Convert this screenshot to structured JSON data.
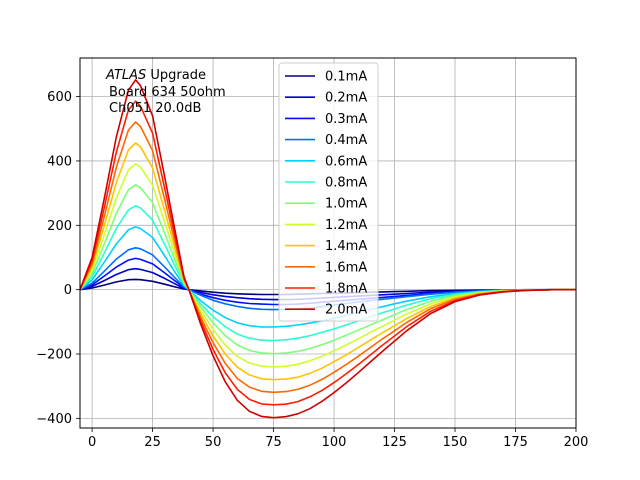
{
  "chart_data": {
    "type": "line",
    "title": "",
    "xlabel": "",
    "ylabel": "",
    "xlim": [
      -5,
      200
    ],
    "ylim": [
      -430,
      720
    ],
    "grid": true,
    "legend_position": "top-center",
    "x_ticks": [
      0,
      25,
      50,
      75,
      100,
      125,
      150,
      175,
      200
    ],
    "y_ticks": [
      -400,
      -200,
      0,
      200,
      400,
      600
    ],
    "x_tick_labels": [
      "0",
      "25",
      "50",
      "75",
      "100",
      "125",
      "150",
      "175",
      "200"
    ],
    "y_tick_labels": [
      "−400",
      "−200",
      "0",
      "200",
      "400",
      "600"
    ],
    "annotation": {
      "line1_italic": "ATLAS",
      "line1_rest": " Upgrade",
      "line2": "Board 634 50ohm",
      "line3": "Ch051 20.0dB"
    },
    "x": [
      -5,
      0,
      5,
      10,
      15,
      18,
      20,
      25,
      30,
      35,
      38,
      40,
      45,
      50,
      55,
      60,
      65,
      70,
      75,
      80,
      85,
      90,
      95,
      100,
      105,
      110,
      115,
      120,
      125,
      130,
      140,
      150,
      160,
      170,
      180,
      190,
      200
    ],
    "series": [
      {
        "name": "0.1mA",
        "color": "#00007f",
        "values": [
          0,
          5,
          14,
          24,
          31,
          32,
          31,
          26,
          17,
          7,
          2,
          0,
          -4,
          -8,
          -11,
          -13,
          -14,
          -15,
          -15,
          -15,
          -14,
          -13,
          -12,
          -11,
          -10,
          -9,
          -8,
          -7,
          -6,
          -5,
          -3,
          -2,
          -1,
          -1,
          0,
          0,
          0
        ]
      },
      {
        "name": "0.2mA",
        "color": "#0000d0",
        "values": [
          0,
          10,
          28,
          47,
          62,
          65,
          63,
          53,
          35,
          15,
          4,
          0,
          -9,
          -16,
          -21,
          -25,
          -28,
          -30,
          -31,
          -31,
          -30,
          -28,
          -26,
          -24,
          -22,
          -20,
          -18,
          -16,
          -14,
          -12,
          -8,
          -5,
          -3,
          -2,
          -1,
          0,
          0
        ]
      },
      {
        "name": "0.3mA",
        "color": "#0010ff",
        "values": [
          0,
          15,
          42,
          70,
          92,
          97,
          94,
          80,
          52,
          23,
          6,
          0,
          -14,
          -25,
          -33,
          -39,
          -43,
          -45,
          -46,
          -46,
          -45,
          -42,
          -39,
          -36,
          -33,
          -30,
          -27,
          -24,
          -21,
          -18,
          -12,
          -7,
          -4,
          -2,
          -1,
          0,
          0
        ]
      },
      {
        "name": "0.4mA",
        "color": "#0070ff",
        "values": [
          0,
          20,
          57,
          95,
          124,
          130,
          127,
          108,
          70,
          31,
          8,
          0,
          -18,
          -33,
          -44,
          -52,
          -58,
          -61,
          -62,
          -62,
          -60,
          -57,
          -53,
          -48,
          -43,
          -38,
          -34,
          -30,
          -26,
          -22,
          -14,
          -8,
          -4,
          -2,
          -1,
          0,
          0
        ]
      },
      {
        "name": "0.6mA",
        "color": "#00d0ff",
        "values": [
          0,
          30,
          85,
          142,
          186,
          195,
          190,
          162,
          105,
          46,
          12,
          0,
          -35,
          -64,
          -87,
          -103,
          -112,
          -116,
          -116,
          -114,
          -110,
          -104,
          -97,
          -89,
          -80,
          -71,
          -62,
          -53,
          -44,
          -36,
          -22,
          -12,
          -6,
          -3,
          -1,
          0,
          0
        ]
      },
      {
        "name": "0.8mA",
        "color": "#29ffce",
        "values": [
          0,
          40,
          113,
          190,
          248,
          261,
          254,
          216,
          140,
          62,
          16,
          0,
          -45,
          -84,
          -115,
          -138,
          -151,
          -157,
          -158,
          -156,
          -151,
          -143,
          -133,
          -122,
          -110,
          -97,
          -84,
          -72,
          -60,
          -48,
          -28,
          -15,
          -7,
          -3,
          -1,
          0,
          0
        ]
      },
      {
        "name": "1.0mA",
        "color": "#7dff7a",
        "values": [
          0,
          50,
          141,
          237,
          310,
          326,
          317,
          270,
          175,
          77,
          20,
          0,
          -55,
          -103,
          -143,
          -172,
          -189,
          -197,
          -199,
          -197,
          -192,
          -183,
          -171,
          -157,
          -142,
          -126,
          -110,
          -94,
          -78,
          -62,
          -36,
          -18,
          -8,
          -3,
          -1,
          0,
          0
        ]
      },
      {
        "name": "1.2mA",
        "color": "#ceff29",
        "values": [
          0,
          60,
          170,
          285,
          372,
          391,
          381,
          324,
          210,
          93,
          24,
          0,
          -66,
          -124,
          -172,
          -207,
          -228,
          -238,
          -240,
          -238,
          -232,
          -221,
          -207,
          -190,
          -172,
          -153,
          -133,
          -114,
          -95,
          -76,
          -44,
          -22,
          -10,
          -4,
          -1,
          0,
          0
        ]
      },
      {
        "name": "1.4mA",
        "color": "#ffc400",
        "values": [
          0,
          70,
          198,
          332,
          434,
          456,
          444,
          378,
          245,
          108,
          28,
          0,
          -77,
          -144,
          -200,
          -241,
          -265,
          -277,
          -280,
          -278,
          -272,
          -260,
          -244,
          -224,
          -203,
          -180,
          -157,
          -134,
          -112,
          -90,
          -52,
          -26,
          -12,
          -5,
          -2,
          0,
          0
        ]
      },
      {
        "name": "1.6mA",
        "color": "#ff6800",
        "values": [
          0,
          80,
          226,
          380,
          496,
          521,
          507,
          432,
          280,
          124,
          32,
          0,
          -88,
          -165,
          -229,
          -276,
          -303,
          -316,
          -319,
          -317,
          -310,
          -297,
          -279,
          -257,
          -233,
          -207,
          -180,
          -153,
          -128,
          -102,
          -59,
          -30,
          -14,
          -6,
          -2,
          0,
          0
        ]
      },
      {
        "name": "1.8mA",
        "color": "#ff1e00",
        "values": [
          0,
          90,
          254,
          427,
          558,
          586,
          570,
          486,
          315,
          139,
          36,
          0,
          -99,
          -186,
          -258,
          -310,
          -341,
          -355,
          -358,
          -356,
          -348,
          -333,
          -313,
          -289,
          -262,
          -233,
          -203,
          -173,
          -144,
          -115,
          -67,
          -34,
          -15,
          -6,
          -2,
          0,
          0
        ]
      },
      {
        "name": "2.0mA",
        "color": "#d00000",
        "values": [
          0,
          100,
          282,
          474,
          620,
          652,
          634,
          540,
          350,
          155,
          40,
          0,
          -110,
          -206,
          -286,
          -344,
          -378,
          -394,
          -398,
          -395,
          -386,
          -370,
          -347,
          -320,
          -290,
          -258,
          -225,
          -192,
          -160,
          -128,
          -74,
          -37,
          -17,
          -7,
          -2,
          0,
          0
        ]
      }
    ]
  }
}
